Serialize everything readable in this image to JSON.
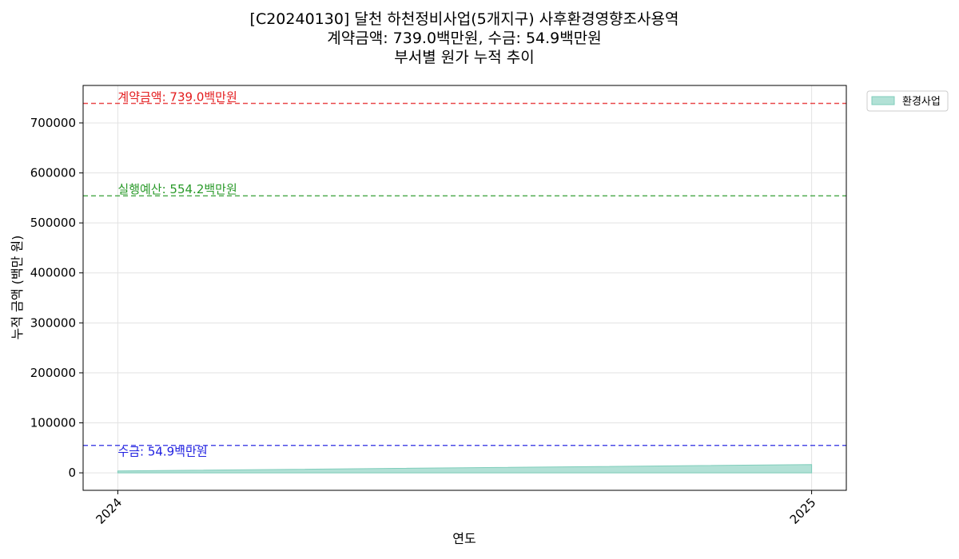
{
  "chart_data": {
    "type": "area",
    "title_lines": [
      "[C20240130] 달천 하천정비사업(5개지구) 사후환경영향조사용역",
      "계약금액: 739.0백만원, 수금: 54.9백만원",
      "부서별 원가 누적 추이"
    ],
    "xlabel": "연도",
    "ylabel": "누적 금액 (백만 원)",
    "x": [
      "2024",
      "2025"
    ],
    "xlim": [
      2023.95,
      2025.05
    ],
    "ylim": [
      -35000,
      775000
    ],
    "yticks": [
      0,
      100000,
      200000,
      300000,
      400000,
      500000,
      600000,
      700000
    ],
    "grid": true,
    "series": [
      {
        "name": "환경사업",
        "color": "#7fcdbb",
        "values": [
          3800,
          16500
        ]
      }
    ],
    "reference_lines": [
      {
        "label": "계약금액: 739.0백만원",
        "value": 739000,
        "color": "#e31a1c"
      },
      {
        "label": "실행예산: 554.2백만원",
        "value": 554200,
        "color": "#2a9a2a"
      },
      {
        "label": "수금: 54.9백만원",
        "value": 54900,
        "color": "#1f1fe0"
      }
    ],
    "legend_position": "outside-top-right"
  }
}
